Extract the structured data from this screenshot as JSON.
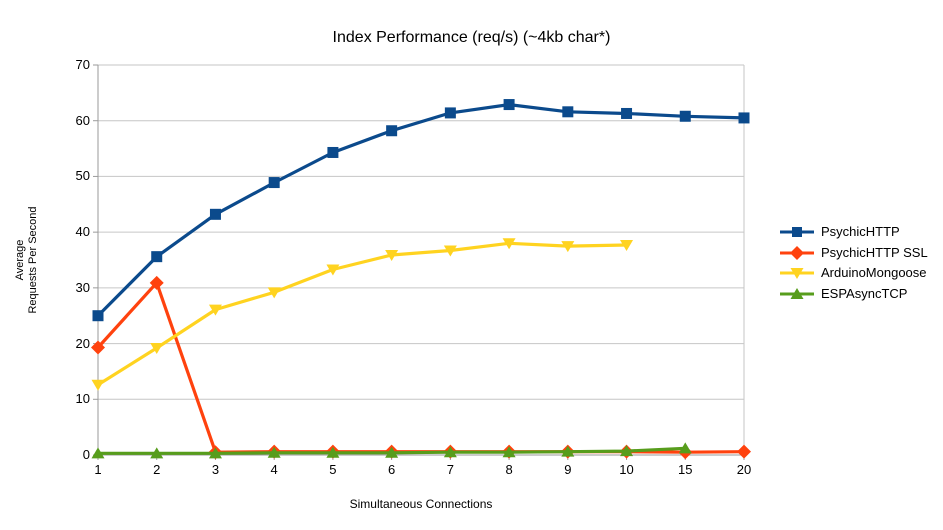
{
  "chart_data": {
    "type": "line",
    "title": "Index Performance (req/s) (~4kb char*)",
    "xlabel": "Simultaneous Connections",
    "ylabel_line1": "Average",
    "ylabel_line2": "Requests Per Second",
    "categories": [
      "1",
      "2",
      "3",
      "4",
      "5",
      "6",
      "7",
      "8",
      "9",
      "10",
      "15",
      "20"
    ],
    "ylim": [
      0,
      70
    ],
    "y_tick_step": 10,
    "grid": "horizontal gridlines on",
    "legend_position": "right",
    "series": [
      {
        "name": "PsychicHTTP",
        "color": "#0B4A8C",
        "marker": "square",
        "values": [
          25.0,
          35.6,
          43.2,
          48.9,
          54.3,
          58.2,
          61.4,
          62.9,
          61.6,
          61.3,
          60.8,
          60.5
        ]
      },
      {
        "name": "PsychicHTTP SSL",
        "color": "#FF420E",
        "marker": "diamond",
        "values": [
          19.3,
          30.9,
          0.5,
          0.6,
          0.6,
          0.6,
          0.6,
          0.6,
          0.6,
          0.6,
          0.5,
          0.6
        ]
      },
      {
        "name": "ArduinoMongoose",
        "color": "#FFD320",
        "marker": "triangle-down",
        "values": [
          12.6,
          19.2,
          26.1,
          29.2,
          33.3,
          35.9,
          36.7,
          38.0,
          37.5,
          37.7,
          null,
          null
        ]
      },
      {
        "name": "ESPAsyncTCP",
        "color": "#579D1C",
        "marker": "triangle-up",
        "values": [
          0.3,
          0.3,
          0.3,
          0.4,
          0.4,
          0.4,
          0.5,
          0.5,
          0.6,
          0.7,
          1.2,
          null
        ]
      }
    ]
  },
  "colors": {
    "background": "#ffffff",
    "gridline": "#c6c6c6",
    "axis": "#9a9a9a",
    "text": "#000000"
  }
}
